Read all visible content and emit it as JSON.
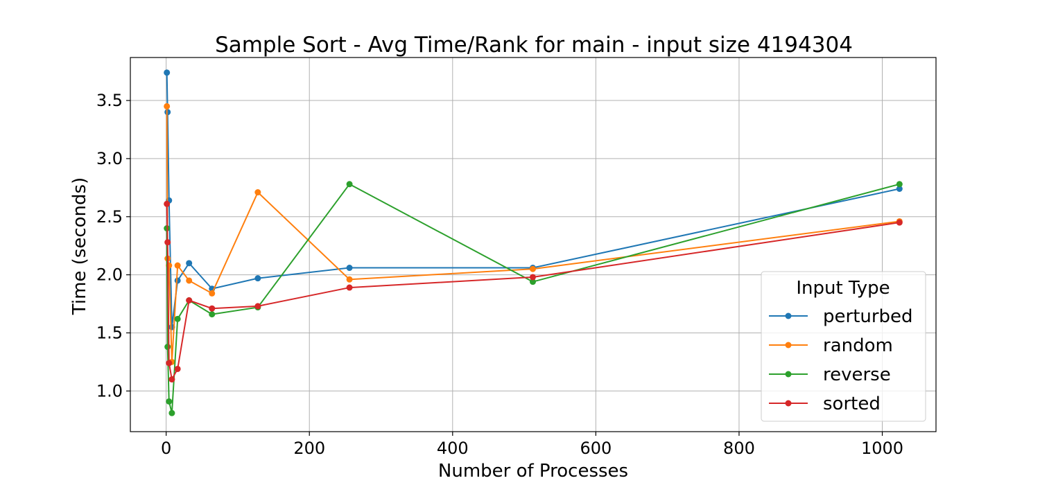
{
  "chart_data": {
    "type": "line",
    "title": "Sample Sort - Avg Time/Rank for main - input size 4194304",
    "xlabel": "Number of Processes",
    "ylabel": "Time (seconds)",
    "xlim": [
      -50,
      1075
    ],
    "ylim": [
      0.65,
      3.87
    ],
    "xticks": [
      0,
      200,
      400,
      600,
      800,
      1000
    ],
    "yticks": [
      1.0,
      1.5,
      2.0,
      2.5,
      3.0,
      3.5
    ],
    "ytick_labels": [
      "1.0",
      "1.5",
      "2.0",
      "2.5",
      "3.0",
      "3.5"
    ],
    "grid": true,
    "legend": {
      "title": "Input Type",
      "position": "lower-right"
    },
    "x": [
      2,
      4,
      8,
      16,
      32,
      64,
      128,
      256,
      512,
      1024
    ],
    "series": [
      {
        "name": "perturbed",
        "color": "#1f77b4",
        "values": [
          3.74,
          3.4,
          2.64,
          1.55,
          1.95,
          2.1,
          1.88,
          1.97,
          2.06,
          2.06,
          2.74
        ],
        "x": [
          1,
          2,
          4,
          8,
          16,
          32,
          64,
          128,
          256,
          512,
          1024
        ]
      },
      {
        "name": "random",
        "color": "#ff7f0e",
        "values": [
          3.45,
          2.14,
          2.08,
          1.25,
          2.08,
          1.95,
          1.84,
          2.71,
          1.96,
          2.05,
          2.46
        ],
        "x": [
          1,
          2,
          4,
          8,
          16,
          32,
          64,
          128,
          256,
          512,
          1024
        ]
      },
      {
        "name": "reverse",
        "color": "#2ca02c",
        "values": [
          2.4,
          1.38,
          0.91,
          0.81,
          1.62,
          1.78,
          1.66,
          1.72,
          2.78,
          1.94,
          2.78
        ],
        "x": [
          1,
          2,
          4,
          8,
          16,
          32,
          64,
          128,
          256,
          512,
          1024
        ]
      },
      {
        "name": "sorted",
        "color": "#d62728",
        "values": [
          2.61,
          2.28,
          1.24,
          1.1,
          1.19,
          1.78,
          1.71,
          1.73,
          1.89,
          1.98,
          2.45
        ],
        "x": [
          1,
          2,
          4,
          8,
          16,
          32,
          64,
          128,
          256,
          512,
          1024
        ]
      }
    ]
  }
}
